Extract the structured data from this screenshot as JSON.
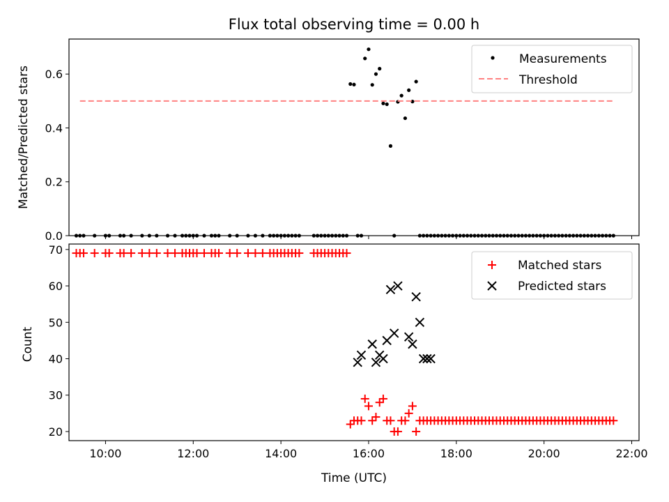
{
  "chart_data": [
    {
      "type": "scatter",
      "title": "Flux total observing time = 0.00 h",
      "xlabel": "",
      "ylabel": "Matched/Predicted stars",
      "xlim": [
        "09:10",
        "22:10"
      ],
      "ylim": [
        0,
        0.73
      ],
      "yticks": [
        0.0,
        0.2,
        0.4,
        0.6
      ],
      "yticklabels": [
        "0.0",
        "0.2",
        "0.4",
        "0.6"
      ],
      "xticks": [
        "10:00",
        "12:00",
        "14:00",
        "16:00",
        "18:00",
        "20:00",
        "22:00"
      ],
      "legend_position": "top-right",
      "colors": {
        "measurements": "#000000",
        "threshold": "#ff8080"
      },
      "series": [
        {
          "name": "Measurements",
          "style": "dot",
          "x": [
            "09:20",
            "09:25",
            "09:30",
            "09:45",
            "10:00",
            "10:05",
            "10:20",
            "10:25",
            "10:35",
            "10:50",
            "11:00",
            "11:10",
            "11:25",
            "11:35",
            "11:45",
            "11:50",
            "11:55",
            "12:00",
            "12:05",
            "12:15",
            "12:25",
            "12:30",
            "12:35",
            "12:50",
            "13:00",
            "13:15",
            "13:25",
            "13:35",
            "13:45",
            "13:50",
            "13:55",
            "14:00",
            "14:05",
            "14:10",
            "14:15",
            "14:20",
            "14:25",
            "14:45",
            "14:50",
            "14:55",
            "15:00",
            "15:05",
            "15:10",
            "15:15",
            "15:20",
            "15:25",
            "15:30",
            "15:35",
            "15:40",
            "15:45",
            "15:50",
            "15:55",
            "16:00",
            "16:05",
            "16:10",
            "16:15",
            "16:20",
            "16:25",
            "16:30",
            "16:35",
            "16:40",
            "16:45",
            "16:50",
            "16:55",
            "17:00",
            "17:05",
            "17:10",
            "17:15",
            "17:20",
            "17:25",
            "17:30",
            "17:35",
            "17:40",
            "17:45",
            "17:50",
            "17:55",
            "18:00",
            "18:05",
            "18:10",
            "18:15",
            "18:20",
            "18:25",
            "18:30",
            "18:35",
            "18:40",
            "18:45",
            "18:50",
            "18:55",
            "19:00",
            "19:05",
            "19:10",
            "19:15",
            "19:20",
            "19:25",
            "19:30",
            "19:35",
            "19:40",
            "19:45",
            "19:50",
            "19:55",
            "20:00",
            "20:05",
            "20:10",
            "20:15",
            "20:20",
            "20:25",
            "20:30",
            "20:35",
            "20:40",
            "20:45",
            "20:50",
            "20:55",
            "21:00",
            "21:05",
            "21:10",
            "21:15",
            "21:20",
            "21:25",
            "21:30",
            "21:35"
          ],
          "y": [
            0,
            0,
            0,
            0,
            0,
            0,
            0,
            0,
            0,
            0,
            0,
            0,
            0,
            0,
            0,
            0,
            0,
            0,
            0,
            0,
            0,
            0,
            0,
            0,
            0,
            0,
            0,
            0,
            0,
            0,
            0,
            0,
            0,
            0,
            0,
            0,
            0,
            0,
            0,
            0,
            0,
            0,
            0,
            0,
            0,
            0,
            0,
            0.563,
            0.561,
            0,
            0,
            0.658,
            0.692,
            0.56,
            0.6,
            0.62,
            0.491,
            0.488,
            0.333,
            0,
            0.497,
            0.52,
            0.436,
            0.54,
            0.498,
            0.572,
            0,
            0,
            0,
            0,
            0,
            0,
            0,
            0,
            0,
            0,
            0,
            0,
            0,
            0,
            0,
            0,
            0,
            0,
            0,
            0,
            0,
            0,
            0,
            0,
            0,
            0,
            0,
            0,
            0,
            0,
            0,
            0,
            0,
            0,
            0,
            0,
            0,
            0,
            0,
            0,
            0,
            0,
            0,
            0,
            0,
            0,
            0,
            0,
            0,
            0,
            0,
            0,
            0,
            0
          ]
        },
        {
          "name": "Threshold",
          "style": "dashed-line",
          "x": [
            "09:25",
            "21:35"
          ],
          "y": [
            0.5,
            0.5
          ]
        }
      ]
    },
    {
      "type": "scatter",
      "title": "",
      "xlabel": "Time (UTC)",
      "ylabel": "Count",
      "xlim": [
        "09:10",
        "22:10"
      ],
      "ylim": [
        17.5,
        71.5
      ],
      "yticks": [
        20,
        30,
        40,
        50,
        60,
        70
      ],
      "xticks": [
        "10:00",
        "12:00",
        "14:00",
        "16:00",
        "18:00",
        "20:00",
        "22:00"
      ],
      "xticklabels": [
        "10:00",
        "12:00",
        "14:00",
        "16:00",
        "18:00",
        "20:00",
        "22:00"
      ],
      "legend_position": "top-right",
      "colors": {
        "matched": "#ff0000",
        "predicted": "#000000"
      },
      "series": [
        {
          "name": "Matched stars",
          "style": "plus",
          "x": [
            "09:20",
            "09:25",
            "09:30",
            "09:45",
            "10:00",
            "10:05",
            "10:20",
            "10:25",
            "10:35",
            "10:50",
            "11:00",
            "11:10",
            "11:25",
            "11:35",
            "11:45",
            "11:50",
            "11:55",
            "12:00",
            "12:05",
            "12:15",
            "12:25",
            "12:30",
            "12:35",
            "12:50",
            "13:00",
            "13:15",
            "13:25",
            "13:35",
            "13:45",
            "13:50",
            "13:55",
            "14:00",
            "14:05",
            "14:10",
            "14:15",
            "14:20",
            "14:25",
            "14:45",
            "14:50",
            "14:55",
            "15:00",
            "15:05",
            "15:10",
            "15:15",
            "15:20",
            "15:25",
            "15:30",
            "15:35",
            "15:40",
            "15:45",
            "15:50",
            "15:55",
            "16:00",
            "16:05",
            "16:10",
            "16:15",
            "16:20",
            "16:25",
            "16:30",
            "16:35",
            "16:40",
            "16:45",
            "16:50",
            "16:55",
            "17:00",
            "17:05",
            "17:10",
            "17:15",
            "17:20",
            "17:25",
            "17:30",
            "17:35",
            "17:40",
            "17:45",
            "17:50",
            "17:55",
            "18:00",
            "18:05",
            "18:10",
            "18:15",
            "18:20",
            "18:25",
            "18:30",
            "18:35",
            "18:40",
            "18:45",
            "18:50",
            "18:55",
            "19:00",
            "19:05",
            "19:10",
            "19:15",
            "19:20",
            "19:25",
            "19:30",
            "19:35",
            "19:40",
            "19:45",
            "19:50",
            "19:55",
            "20:00",
            "20:05",
            "20:10",
            "20:15",
            "20:20",
            "20:25",
            "20:30",
            "20:35",
            "20:40",
            "20:45",
            "20:50",
            "20:55",
            "21:00",
            "21:05",
            "21:10",
            "21:15",
            "21:20",
            "21:25",
            "21:30",
            "21:35"
          ],
          "y": [
            69,
            69,
            69,
            69,
            69,
            69,
            69,
            69,
            69,
            69,
            69,
            69,
            69,
            69,
            69,
            69,
            69,
            69,
            69,
            69,
            69,
            69,
            69,
            69,
            69,
            69,
            69,
            69,
            69,
            69,
            69,
            69,
            69,
            69,
            69,
            69,
            69,
            69,
            69,
            69,
            69,
            69,
            69,
            69,
            69,
            69,
            69,
            22,
            23,
            23,
            23,
            29,
            27,
            23,
            24,
            28,
            29,
            23,
            23,
            20,
            20,
            23,
            23,
            25,
            27,
            20,
            23,
            23,
            23,
            23,
            23,
            23,
            23,
            23,
            23,
            23,
            23,
            23,
            23,
            23,
            23,
            23,
            23,
            23,
            23,
            23,
            23,
            23,
            23,
            23,
            23,
            23,
            23,
            23,
            23,
            23,
            23,
            23,
            23,
            23,
            23,
            23,
            23,
            23,
            23,
            23,
            23,
            23,
            23,
            23,
            23,
            23,
            23,
            23,
            23,
            23,
            23,
            23,
            23,
            23
          ]
        },
        {
          "name": "Predicted stars",
          "style": "cross",
          "x": [
            "15:45",
            "15:50",
            "16:05",
            "16:10",
            "16:15",
            "16:20",
            "16:25",
            "16:30",
            "16:35",
            "16:40",
            "16:55",
            "17:00",
            "17:05",
            "17:10",
            "17:15",
            "17:20",
            "17:25"
          ],
          "y": [
            39,
            41,
            44,
            39,
            41,
            40,
            45,
            59,
            47,
            60,
            46,
            44,
            57,
            50,
            40,
            40,
            40
          ]
        }
      ]
    }
  ]
}
